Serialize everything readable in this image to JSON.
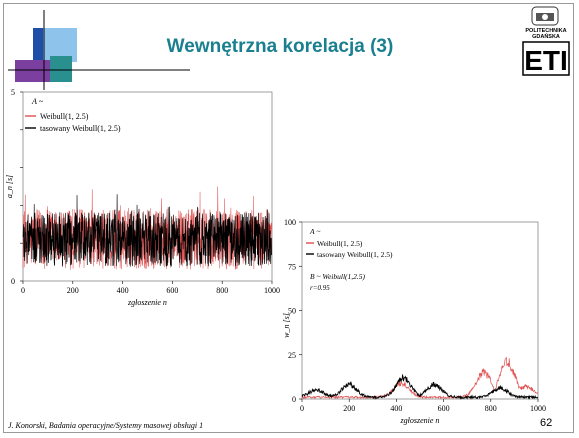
{
  "slide": {
    "title": "Wewnętrzna korelacja (3)",
    "footer_left": "J. Konorski, Badania operacyjne/Systemy masowej obsługi 1",
    "page_number": "62",
    "logo": {
      "text1": "POLITECHNIKA",
      "text2": "GDAŃSKA",
      "brand_text": "ETI"
    },
    "colors": {
      "title": "#1a7f8f",
      "deco_blue": "#1f4ea8",
      "deco_light_blue": "#8ec3ec",
      "deco_purple": "#7b3fa0",
      "deco_teal": "#2a8f8f"
    }
  },
  "chart_data": [
    {
      "type": "line",
      "ylabel": "a_n [s]",
      "xlabel": "zgłoszenie n",
      "xlim": [
        0,
        1000
      ],
      "ylim": [
        0,
        5
      ],
      "x_ticks": [
        "0",
        "200",
        "400",
        "600",
        "800",
        "1000"
      ],
      "y_ticks_labeled": [
        "0",
        "5"
      ],
      "legend_header": "A ~",
      "series": [
        {
          "name": "Weibull(1, 2.5)",
          "color": "#e05050",
          "mean": 1.1,
          "spread": 0.5,
          "points": 1000
        },
        {
          "name": "tasowany Weibull(1, 2.5)",
          "color": "#000000",
          "mean": 1.1,
          "spread": 0.45,
          "points": 1000
        }
      ]
    },
    {
      "type": "line",
      "ylabel": "w_n [s]",
      "xlabel": "zgłoszenie n",
      "xlim": [
        0,
        1000
      ],
      "ylim": [
        0,
        100
      ],
      "x_ticks": [
        "0",
        "200",
        "400",
        "600",
        "800",
        "1000"
      ],
      "y_ticks": [
        "0",
        "25",
        "50",
        "75",
        "100"
      ],
      "legend_header": "A ~",
      "legend_footer": "B ~ Weibull(1,2.5)",
      "legend_note": "r=0.95",
      "series": [
        {
          "name": "Weibull(1, 2.5)",
          "color": "#e05050",
          "peaks": [
            [
              420,
              8
            ],
            [
              770,
              14
            ],
            [
              870,
              20
            ],
            [
              950,
              6
            ]
          ]
        },
        {
          "name": "tasowany Weibull(1, 2.5)",
          "color": "#000000",
          "peaks": [
            [
              60,
              4
            ],
            [
              200,
              7
            ],
            [
              430,
              11
            ],
            [
              560,
              7
            ],
            [
              840,
              5
            ]
          ]
        }
      ]
    }
  ]
}
